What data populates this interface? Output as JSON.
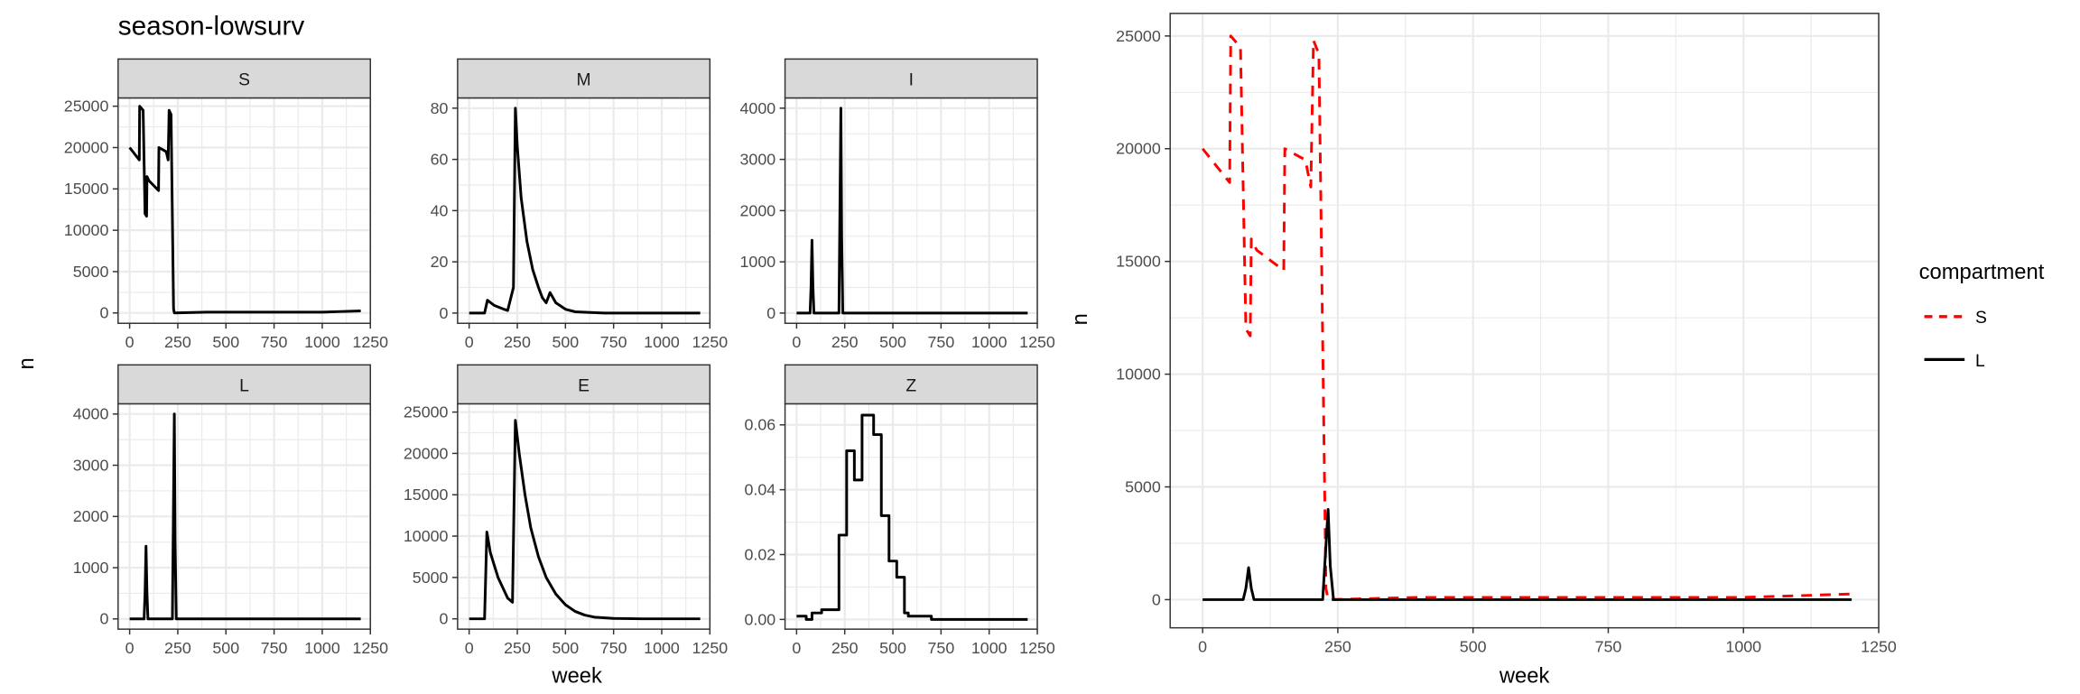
{
  "figure": {
    "title": "season-lowsurv"
  },
  "colors": {
    "S": "#ff0000",
    "L": "#000000",
    "grid": "#ebebeb",
    "strip": "#d9d9d9",
    "axis_text": "#4d4d4d"
  },
  "chart_data": [
    {
      "type": "line",
      "facet": "S",
      "xlabel": "",
      "ylabel": "n",
      "xticks": [
        0,
        250,
        500,
        750,
        1000,
        1250
      ],
      "yticks": [
        0,
        5000,
        10000,
        15000,
        20000,
        25000
      ],
      "xlim": [
        -60,
        1250
      ],
      "ylim": [
        -1250,
        26000
      ],
      "grid": true,
      "series": [
        {
          "values": [
            [
              0,
              20000
            ],
            [
              50,
              18500
            ],
            [
              52,
              25000
            ],
            [
              70,
              24500
            ],
            [
              80,
              12000
            ],
            [
              88,
              11700
            ],
            [
              90,
              16500
            ],
            [
              100,
              16000
            ],
            [
              150,
              14800
            ],
            [
              152,
              20000
            ],
            [
              190,
              19500
            ],
            [
              200,
              18500
            ],
            [
              205,
              24500
            ],
            [
              215,
              24000
            ],
            [
              228,
              500
            ],
            [
              232,
              0
            ],
            [
              400,
              100
            ],
            [
              1000,
              100
            ],
            [
              1200,
              250
            ]
          ]
        }
      ]
    },
    {
      "type": "line",
      "facet": "M",
      "xlabel": "",
      "ylabel": "n",
      "xticks": [
        0,
        250,
        500,
        750,
        1000,
        1250
      ],
      "yticks": [
        0,
        20,
        40,
        60,
        80
      ],
      "xlim": [
        -60,
        1250
      ],
      "ylim": [
        -4,
        84
      ],
      "grid": true,
      "series": [
        {
          "values": [
            [
              0,
              0
            ],
            [
              80,
              0
            ],
            [
              95,
              5
            ],
            [
              130,
              3
            ],
            [
              180,
              1.5
            ],
            [
              200,
              1
            ],
            [
              230,
              10
            ],
            [
              240,
              80
            ],
            [
              250,
              65
            ],
            [
              270,
              45
            ],
            [
              300,
              28
            ],
            [
              330,
              17
            ],
            [
              360,
              10
            ],
            [
              380,
              6
            ],
            [
              400,
              4
            ],
            [
              420,
              8
            ],
            [
              450,
              4
            ],
            [
              500,
              1.5
            ],
            [
              550,
              0.5
            ],
            [
              700,
              0
            ],
            [
              1200,
              0
            ]
          ]
        }
      ]
    },
    {
      "type": "line",
      "facet": "I",
      "xlabel": "",
      "ylabel": "n",
      "xticks": [
        0,
        250,
        500,
        750,
        1000,
        1250
      ],
      "yticks": [
        0,
        1000,
        2000,
        3000,
        4000
      ],
      "xlim": [
        -60,
        1250
      ],
      "ylim": [
        -200,
        4200
      ],
      "grid": true,
      "series": [
        {
          "values": [
            [
              0,
              0
            ],
            [
              70,
              0
            ],
            [
              75,
              500
            ],
            [
              80,
              1420
            ],
            [
              85,
              500
            ],
            [
              90,
              0
            ],
            [
              220,
              0
            ],
            [
              225,
              2000
            ],
            [
              230,
              4000
            ],
            [
              234,
              1500
            ],
            [
              240,
              0
            ],
            [
              1200,
              0
            ]
          ]
        }
      ]
    },
    {
      "type": "line",
      "facet": "L",
      "xlabel": "",
      "ylabel": "n",
      "xticks": [
        0,
        250,
        500,
        750,
        1000,
        1250
      ],
      "yticks": [
        0,
        1000,
        2000,
        3000,
        4000
      ],
      "xlim": [
        -60,
        1250
      ],
      "ylim": [
        -200,
        4200
      ],
      "grid": true,
      "series": [
        {
          "values": [
            [
              0,
              0
            ],
            [
              75,
              0
            ],
            [
              80,
              500
            ],
            [
              85,
              1420
            ],
            [
              90,
              500
            ],
            [
              95,
              0
            ],
            [
              222,
              0
            ],
            [
              227,
              2000
            ],
            [
              232,
              4000
            ],
            [
              236,
              1500
            ],
            [
              242,
              0
            ],
            [
              1200,
              0
            ]
          ]
        }
      ]
    },
    {
      "type": "line",
      "facet": "E",
      "xlabel": "week",
      "ylabel": "n",
      "xticks": [
        0,
        250,
        500,
        750,
        1000,
        1250
      ],
      "yticks": [
        0,
        5000,
        10000,
        15000,
        20000,
        25000
      ],
      "xlim": [
        -60,
        1250
      ],
      "ylim": [
        -1250,
        26000
      ],
      "grid": true,
      "series": [
        {
          "values": [
            [
              0,
              0
            ],
            [
              80,
              0
            ],
            [
              92,
              10500
            ],
            [
              110,
              8000
            ],
            [
              150,
              5000
            ],
            [
              200,
              2500
            ],
            [
              225,
              2000
            ],
            [
              240,
              24000
            ],
            [
              260,
              20000
            ],
            [
              290,
              15000
            ],
            [
              320,
              11000
            ],
            [
              360,
              7500
            ],
            [
              400,
              5000
            ],
            [
              450,
              3000
            ],
            [
              500,
              1700
            ],
            [
              550,
              900
            ],
            [
              600,
              450
            ],
            [
              650,
              200
            ],
            [
              750,
              50
            ],
            [
              900,
              0
            ],
            [
              1200,
              0
            ]
          ]
        }
      ]
    },
    {
      "type": "line",
      "facet": "Z",
      "xlabel": "",
      "ylabel": "n",
      "xticks": [
        0,
        250,
        500,
        750,
        1000,
        1250
      ],
      "yticks": [
        0.0,
        0.02,
        0.04,
        0.06
      ],
      "ytick_labels": [
        "0.00",
        "0.02",
        "0.04",
        "0.06"
      ],
      "xlim": [
        -60,
        1250
      ],
      "ylim": [
        -0.003,
        0.0665
      ],
      "grid": true,
      "series": [
        {
          "values": [
            [
              0,
              0.001
            ],
            [
              50,
              0.001
            ],
            [
              50,
              0
            ],
            [
              80,
              0
            ],
            [
              80,
              0.002
            ],
            [
              130,
              0.002
            ],
            [
              130,
              0.003
            ],
            [
              220,
              0.003
            ],
            [
              220,
              0.026
            ],
            [
              260,
              0.026
            ],
            [
              260,
              0.052
            ],
            [
              300,
              0.052
            ],
            [
              300,
              0.043
            ],
            [
              340,
              0.043
            ],
            [
              340,
              0.063
            ],
            [
              400,
              0.063
            ],
            [
              400,
              0.057
            ],
            [
              440,
              0.057
            ],
            [
              440,
              0.032
            ],
            [
              480,
              0.032
            ],
            [
              480,
              0.018
            ],
            [
              520,
              0.018
            ],
            [
              520,
              0.013
            ],
            [
              560,
              0.013
            ],
            [
              560,
              0.002
            ],
            [
              580,
              0.002
            ],
            [
              580,
              0.001
            ],
            [
              700,
              0.001
            ],
            [
              700,
              0
            ],
            [
              1200,
              0
            ]
          ]
        }
      ]
    },
    {
      "type": "line",
      "facet": "",
      "xlabel": "week",
      "ylabel": "n",
      "xticks": [
        0,
        250,
        500,
        750,
        1000,
        1250
      ],
      "yticks": [
        0,
        5000,
        10000,
        15000,
        20000,
        25000
      ],
      "xlim": [
        -60,
        1250
      ],
      "ylim": [
        -1250,
        26000
      ],
      "grid": true,
      "legend": {
        "title": "compartment",
        "position": "right"
      },
      "series": [
        {
          "name": "S",
          "dashed": true,
          "values": [
            [
              0,
              20000
            ],
            [
              50,
              18500
            ],
            [
              52,
              25000
            ],
            [
              70,
              24500
            ],
            [
              80,
              12000
            ],
            [
              88,
              11700
            ],
            [
              90,
              16000
            ],
            [
              100,
              15500
            ],
            [
              150,
              14600
            ],
            [
              152,
              20000
            ],
            [
              190,
              19500
            ],
            [
              200,
              18300
            ],
            [
              205,
              24800
            ],
            [
              215,
              24200
            ],
            [
              228,
              500
            ],
            [
              232,
              0
            ],
            [
              400,
              100
            ],
            [
              1000,
              100
            ],
            [
              1200,
              250
            ]
          ]
        },
        {
          "name": "L",
          "dashed": false,
          "values": [
            [
              0,
              0
            ],
            [
              75,
              0
            ],
            [
              80,
              500
            ],
            [
              85,
              1420
            ],
            [
              90,
              500
            ],
            [
              95,
              0
            ],
            [
              222,
              0
            ],
            [
              227,
              2000
            ],
            [
              232,
              4000
            ],
            [
              236,
              1500
            ],
            [
              242,
              0
            ],
            [
              1200,
              0
            ]
          ]
        }
      ]
    }
  ]
}
